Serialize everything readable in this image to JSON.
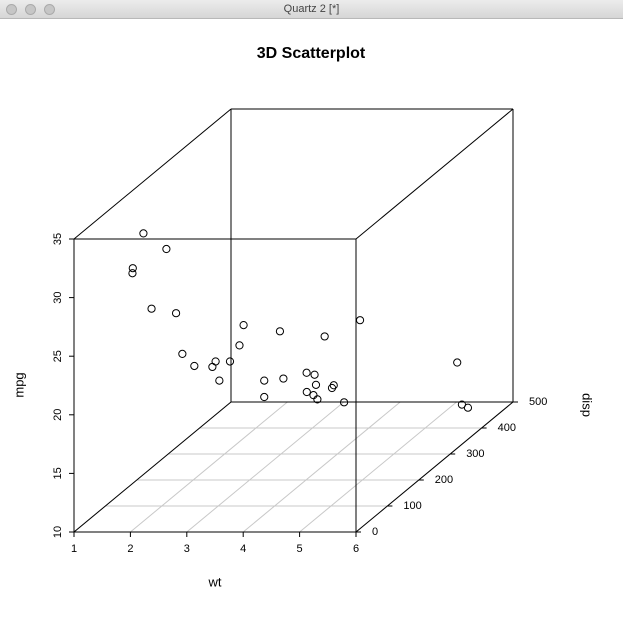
{
  "window": {
    "title": "Quartz 2 [*]"
  },
  "chart_data": {
    "type": "scatter3d",
    "title": "3D Scatterplot",
    "xlabel": "wt",
    "ylabel": "mpg",
    "zlabel": "disp",
    "x": [
      2.62,
      2.875,
      2.32,
      3.215,
      3.44,
      3.46,
      3.57,
      3.19,
      3.15,
      3.44,
      3.44,
      4.07,
      3.73,
      3.78,
      5.25,
      5.424,
      5.345,
      2.2,
      1.615,
      1.835,
      2.465,
      3.52,
      3.435,
      3.84,
      3.845,
      1.935,
      2.14,
      1.513,
      3.17,
      2.77,
      3.57,
      2.78
    ],
    "y": [
      21,
      21,
      22.8,
      21.4,
      18.7,
      18.1,
      14.3,
      24.4,
      22.8,
      19.2,
      17.8,
      16.4,
      17.3,
      15.2,
      10.4,
      10.4,
      14.7,
      32.4,
      30.4,
      33.9,
      21.5,
      15.5,
      15.2,
      13.3,
      19.2,
      27.3,
      26,
      30.4,
      15.8,
      19.7,
      15,
      21.4
    ],
    "z": [
      160,
      160,
      108,
      258,
      360,
      225,
      360,
      146.7,
      140.8,
      167.6,
      167.6,
      275.8,
      275.8,
      275.8,
      472,
      460,
      440,
      78.7,
      75.7,
      71.1,
      120.1,
      318,
      304,
      350,
      400,
      79,
      120.3,
      95.1,
      351,
      145,
      301,
      121
    ],
    "xlim": [
      1,
      6
    ],
    "ylim": [
      10,
      35
    ],
    "zlim": [
      0,
      500
    ],
    "xticks": [
      1,
      2,
      3,
      4,
      5,
      6
    ],
    "yticks": [
      10,
      15,
      20,
      25,
      30,
      35
    ],
    "zticks": [
      0,
      100,
      200,
      300,
      400,
      500
    ],
    "grid": true,
    "color": "#000000"
  }
}
